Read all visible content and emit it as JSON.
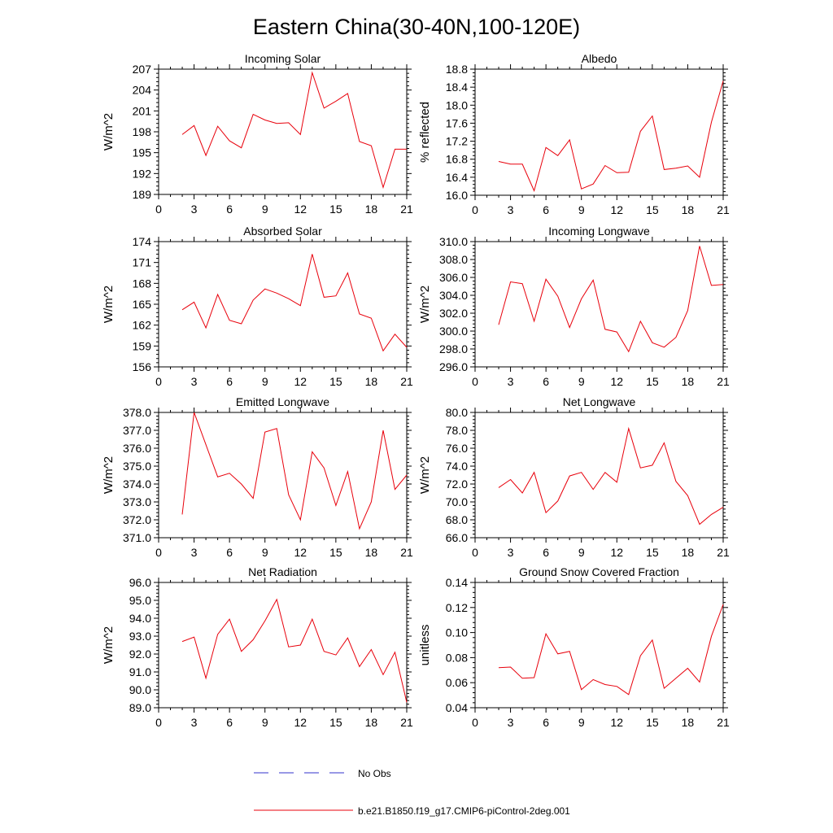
{
  "title": "Eastern China(30-40N,100-120E)",
  "legend": {
    "items": [
      {
        "label": "No Obs",
        "color": "#3333cc",
        "dash": true
      },
      {
        "label": "b.e21.B1850.f19_g17.CMIP6-piControl-2deg.001",
        "color": "#e8000b",
        "dash": false
      }
    ]
  },
  "chart_data": [
    {
      "type": "line",
      "title": "Incoming Solar",
      "ylabel": "W/m^2",
      "xlim": [
        0,
        21
      ],
      "xticks": [
        0,
        3,
        6,
        9,
        12,
        15,
        18,
        21
      ],
      "ylim": [
        189,
        207
      ],
      "yticks": [
        "189",
        "192",
        "195",
        "198",
        "201",
        "204",
        "207"
      ],
      "x": [
        2,
        3,
        4,
        5,
        6,
        7,
        8,
        9,
        10,
        11,
        12,
        13,
        14,
        15,
        16,
        17,
        18,
        19,
        20,
        21
      ],
      "series": [
        {
          "color": "#e8000b",
          "values": [
            197.6,
            198.9,
            194.6,
            198.8,
            196.7,
            195.7,
            200.5,
            199.7,
            199.2,
            199.3,
            197.6,
            206.5,
            201.4,
            202.4,
            203.5,
            196.6,
            196.0,
            190.0,
            195.5,
            195.5
          ]
        }
      ]
    },
    {
      "type": "line",
      "title": "Albedo",
      "ylabel": "% reflected",
      "xlim": [
        0,
        21
      ],
      "xticks": [
        0,
        3,
        6,
        9,
        12,
        15,
        18,
        21
      ],
      "ylim": [
        16.0,
        18.8
      ],
      "yticks": [
        "16.0",
        "16.4",
        "16.8",
        "17.2",
        "17.6",
        "18.0",
        "18.4",
        "18.8"
      ],
      "x": [
        2,
        3,
        4,
        5,
        6,
        7,
        8,
        9,
        10,
        11,
        12,
        13,
        14,
        15,
        16,
        17,
        18,
        19,
        20,
        21
      ],
      "series": [
        {
          "color": "#e8000b",
          "values": [
            16.75,
            16.69,
            16.69,
            16.1,
            17.06,
            16.88,
            17.23,
            16.14,
            16.25,
            16.66,
            16.5,
            16.51,
            17.42,
            17.76,
            16.57,
            16.6,
            16.65,
            16.4,
            17.62,
            18.54
          ]
        }
      ]
    },
    {
      "type": "line",
      "title": "Absorbed Solar",
      "ylabel": "W/m^2",
      "xlim": [
        0,
        21
      ],
      "xticks": [
        0,
        3,
        6,
        9,
        12,
        15,
        18,
        21
      ],
      "ylim": [
        156,
        174
      ],
      "yticks": [
        "156",
        "159",
        "162",
        "165",
        "168",
        "171",
        "174"
      ],
      "x": [
        2,
        3,
        4,
        5,
        6,
        7,
        8,
        9,
        10,
        11,
        12,
        13,
        14,
        15,
        16,
        17,
        18,
        19,
        20,
        21
      ],
      "series": [
        {
          "color": "#e8000b",
          "values": [
            164.2,
            165.3,
            161.6,
            166.4,
            162.7,
            162.2,
            165.6,
            167.2,
            166.6,
            165.8,
            164.8,
            172.2,
            166.0,
            166.2,
            169.5,
            163.6,
            163.0,
            158.3,
            160.7,
            158.8
          ]
        }
      ]
    },
    {
      "type": "line",
      "title": "Incoming Longwave",
      "ylabel": "W/m^2",
      "xlim": [
        0,
        21
      ],
      "xticks": [
        0,
        3,
        6,
        9,
        12,
        15,
        18,
        21
      ],
      "ylim": [
        296.0,
        310.0
      ],
      "yticks": [
        "296.0",
        "298.0",
        "300.0",
        "302.0",
        "304.0",
        "306.0",
        "308.0",
        "310.0"
      ],
      "x": [
        2,
        3,
        4,
        5,
        6,
        7,
        8,
        9,
        10,
        11,
        12,
        13,
        14,
        15,
        16,
        17,
        18,
        19,
        20,
        21
      ],
      "series": [
        {
          "color": "#e8000b",
          "values": [
            300.7,
            305.5,
            305.3,
            301.1,
            305.8,
            303.9,
            300.4,
            303.6,
            305.7,
            300.2,
            299.9,
            297.7,
            301.1,
            298.7,
            298.2,
            299.3,
            302.3,
            309.5,
            305.1,
            305.2
          ]
        }
      ]
    },
    {
      "type": "line",
      "title": "Emitted Longwave",
      "ylabel": "W/m^2",
      "xlim": [
        0,
        21
      ],
      "xticks": [
        0,
        3,
        6,
        9,
        12,
        15,
        18,
        21
      ],
      "ylim": [
        371.0,
        378.0
      ],
      "yticks": [
        "371.0",
        "372.0",
        "373.0",
        "374.0",
        "375.0",
        "376.0",
        "377.0",
        "378.0"
      ],
      "x": [
        2,
        3,
        4,
        5,
        6,
        7,
        8,
        9,
        10,
        11,
        12,
        13,
        14,
        15,
        16,
        17,
        18,
        19,
        20,
        21
      ],
      "series": [
        {
          "color": "#e8000b",
          "values": [
            372.3,
            378.0,
            376.2,
            374.4,
            374.6,
            374.0,
            373.2,
            376.9,
            377.1,
            373.4,
            372.0,
            375.8,
            374.9,
            372.8,
            374.7,
            371.5,
            373.0,
            377.0,
            373.7,
            374.5
          ]
        }
      ]
    },
    {
      "type": "line",
      "title": "Net Longwave",
      "ylabel": "W/m^2",
      "xlim": [
        0,
        21
      ],
      "xticks": [
        0,
        3,
        6,
        9,
        12,
        15,
        18,
        21
      ],
      "ylim": [
        66.0,
        80.0
      ],
      "yticks": [
        "66.0",
        "68.0",
        "70.0",
        "72.0",
        "74.0",
        "76.0",
        "78.0",
        "80.0"
      ],
      "x": [
        2,
        3,
        4,
        5,
        6,
        7,
        8,
        9,
        10,
        11,
        12,
        13,
        14,
        15,
        16,
        17,
        18,
        19,
        20,
        21
      ],
      "series": [
        {
          "color": "#e8000b",
          "values": [
            71.6,
            72.5,
            71.0,
            73.3,
            68.8,
            70.1,
            72.9,
            73.3,
            71.4,
            73.3,
            72.2,
            78.2,
            73.8,
            74.1,
            76.6,
            72.3,
            70.7,
            67.5,
            68.6,
            69.4
          ]
        }
      ]
    },
    {
      "type": "line",
      "title": "Net Radiation",
      "ylabel": "W/m^2",
      "xlim": [
        0,
        21
      ],
      "xticks": [
        0,
        3,
        6,
        9,
        12,
        15,
        18,
        21
      ],
      "ylim": [
        89.0,
        96.0
      ],
      "yticks": [
        "89.0",
        "90.0",
        "91.0",
        "92.0",
        "93.0",
        "94.0",
        "95.0",
        "96.0"
      ],
      "x": [
        2,
        3,
        4,
        5,
        6,
        7,
        8,
        9,
        10,
        11,
        12,
        13,
        14,
        15,
        16,
        17,
        18,
        19,
        20,
        21
      ],
      "series": [
        {
          "color": "#e8000b",
          "values": [
            92.7,
            92.95,
            90.65,
            93.1,
            93.95,
            92.15,
            92.8,
            93.85,
            95.05,
            92.4,
            92.5,
            93.95,
            92.15,
            91.95,
            92.9,
            91.3,
            92.25,
            90.85,
            92.1,
            89.3
          ]
        }
      ]
    },
    {
      "type": "line",
      "title": "Ground Snow Covered Fraction",
      "ylabel": "unitless",
      "xlim": [
        0,
        21
      ],
      "xticks": [
        0,
        3,
        6,
        9,
        12,
        15,
        18,
        21
      ],
      "ylim": [
        0.04,
        0.14
      ],
      "yticks": [
        "0.04",
        "0.06",
        "0.08",
        "0.10",
        "0.12",
        "0.14"
      ],
      "x": [
        2,
        3,
        4,
        5,
        6,
        7,
        8,
        9,
        10,
        11,
        12,
        13,
        14,
        15,
        16,
        17,
        18,
        19,
        20,
        21
      ],
      "series": [
        {
          "color": "#e8000b",
          "values": [
            0.072,
            0.0725,
            0.0635,
            0.064,
            0.099,
            0.083,
            0.085,
            0.0545,
            0.0625,
            0.0585,
            0.057,
            0.0505,
            0.0815,
            0.094,
            0.0555,
            0.0635,
            0.0715,
            0.0605,
            0.097,
            0.1225
          ]
        }
      ]
    }
  ]
}
